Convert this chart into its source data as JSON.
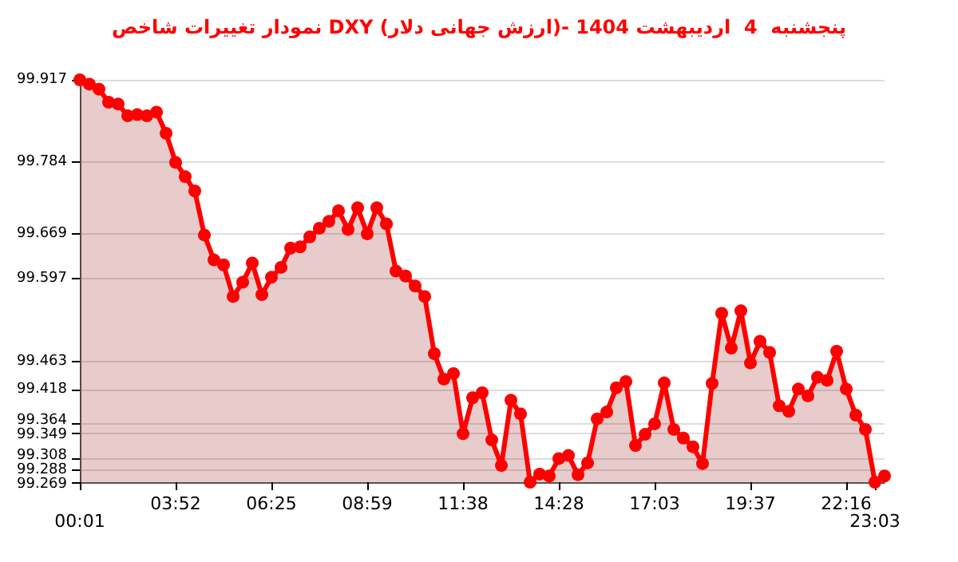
{
  "chart_data": {
    "type": "area",
    "title": "نمودار تغییرات شاخص DXY (ارزش جهانی دلار)- پنجشنبه  4  اردیبهشت 1404",
    "categories": [
      "00:01",
      null,
      null,
      null,
      null,
      null,
      null,
      null,
      null,
      null,
      "03:52",
      null,
      null,
      null,
      null,
      null,
      null,
      null,
      null,
      null,
      "06:25",
      null,
      null,
      null,
      null,
      null,
      null,
      null,
      null,
      null,
      "08:59",
      null,
      null,
      null,
      null,
      null,
      null,
      null,
      null,
      null,
      "11:38",
      null,
      null,
      null,
      null,
      null,
      null,
      null,
      null,
      null,
      "14:28",
      null,
      null,
      null,
      null,
      null,
      null,
      null,
      null,
      null,
      "17:03",
      null,
      null,
      null,
      null,
      null,
      null,
      null,
      null,
      null,
      "19:37",
      null,
      null,
      null,
      null,
      null,
      null,
      null,
      null,
      null,
      "22:16",
      null,
      null,
      "23:03",
      null
    ],
    "series": [
      {
        "color": "#ff0000",
        "values": [
          99.917,
          99.91,
          99.902,
          99.881,
          99.878,
          99.859,
          99.861,
          99.859,
          99.865,
          99.831,
          99.784,
          99.761,
          99.738,
          99.667,
          99.627,
          99.619,
          99.568,
          99.591,
          99.622,
          99.571,
          99.599,
          99.615,
          99.646,
          99.648,
          99.664,
          99.678,
          99.689,
          99.706,
          99.676,
          99.711,
          99.669,
          99.711,
          99.685,
          99.609,
          99.601,
          99.585,
          99.568,
          99.476,
          99.435,
          99.444,
          99.347,
          99.405,
          99.413,
          99.337,
          99.296,
          99.401,
          99.379,
          99.269,
          99.282,
          99.279,
          99.307,
          99.312,
          99.281,
          99.3,
          99.371,
          99.382,
          99.421,
          99.431,
          99.328,
          99.346,
          99.363,
          99.429,
          99.354,
          99.34,
          99.326,
          99.299,
          99.428,
          99.541,
          99.485,
          99.545,
          99.461,
          99.496,
          99.478,
          99.392,
          99.383,
          99.419,
          99.408,
          99.438,
          99.433,
          99.48,
          99.419,
          99.377,
          99.354,
          99.269,
          99.279
        ]
      }
    ],
    "ylim": [
      99.269,
      99.917
    ],
    "yticks": [
      99.917,
      99.784,
      99.669,
      99.597,
      99.463,
      99.418,
      99.364,
      99.349,
      99.308,
      99.288,
      99.269
    ],
    "grid": "y",
    "marker": "circle",
    "line_style": "solid"
  }
}
